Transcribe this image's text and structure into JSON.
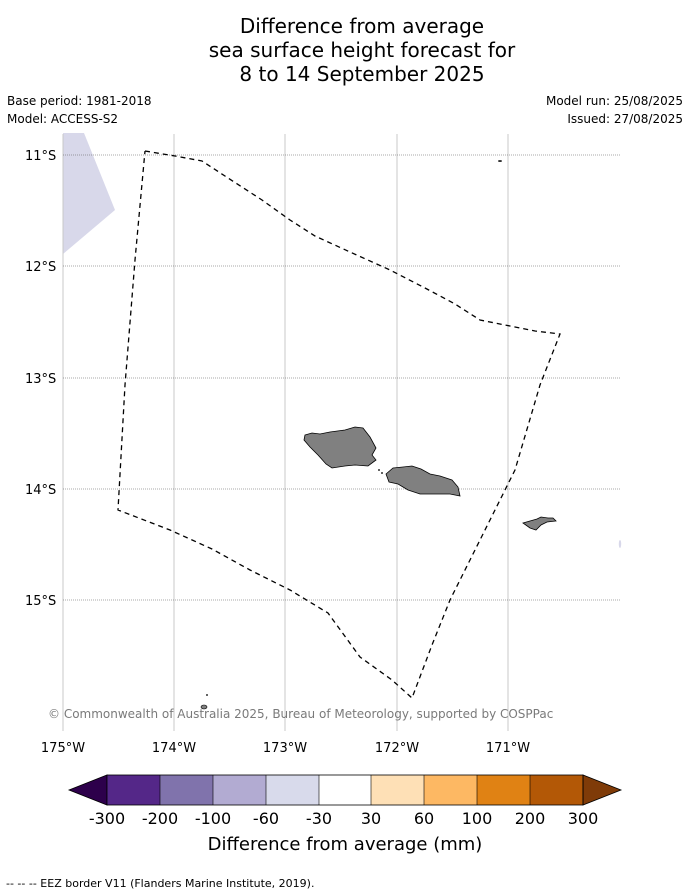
{
  "title": {
    "line1": "Difference from average",
    "line2": "sea surface height forecast for",
    "line3": "8 to 14 September 2025"
  },
  "meta": {
    "base_period": "Base period: 1981-2018",
    "model": "Model: ACCESS-S2",
    "model_run": "Model run: 25/08/2025",
    "issued": "Issued: 27/08/2025"
  },
  "map": {
    "lat_labels": [
      "11°S",
      "12°S",
      "13°S",
      "14°S",
      "15°S"
    ],
    "lon_labels": [
      "175°W",
      "174°W",
      "173°W",
      "172°W",
      "171°W"
    ],
    "copyright": "© Commonwealth of Australia 2025, Bureau of Meteorology, supported by COSPPac",
    "land_color": "#808080",
    "anomaly_patch_color": "#d8d8ea"
  },
  "colorbar": {
    "label": "Difference from average (mm)",
    "tick_labels": [
      "-300",
      "-200",
      "-100",
      "-60",
      "-30",
      "30",
      "60",
      "100",
      "200",
      "300"
    ],
    "colors": [
      "#2d004b",
      "#542788",
      "#8073ac",
      "#b2abd2",
      "#d8daeb",
      "#ffffff",
      "#fee0b6",
      "#fdb863",
      "#e08214",
      "#b35806",
      "#7f3b08"
    ]
  },
  "footer": {
    "legend_text": "--  --  -- EEZ border V11 (Flanders Marine Institute, 2019)."
  }
}
